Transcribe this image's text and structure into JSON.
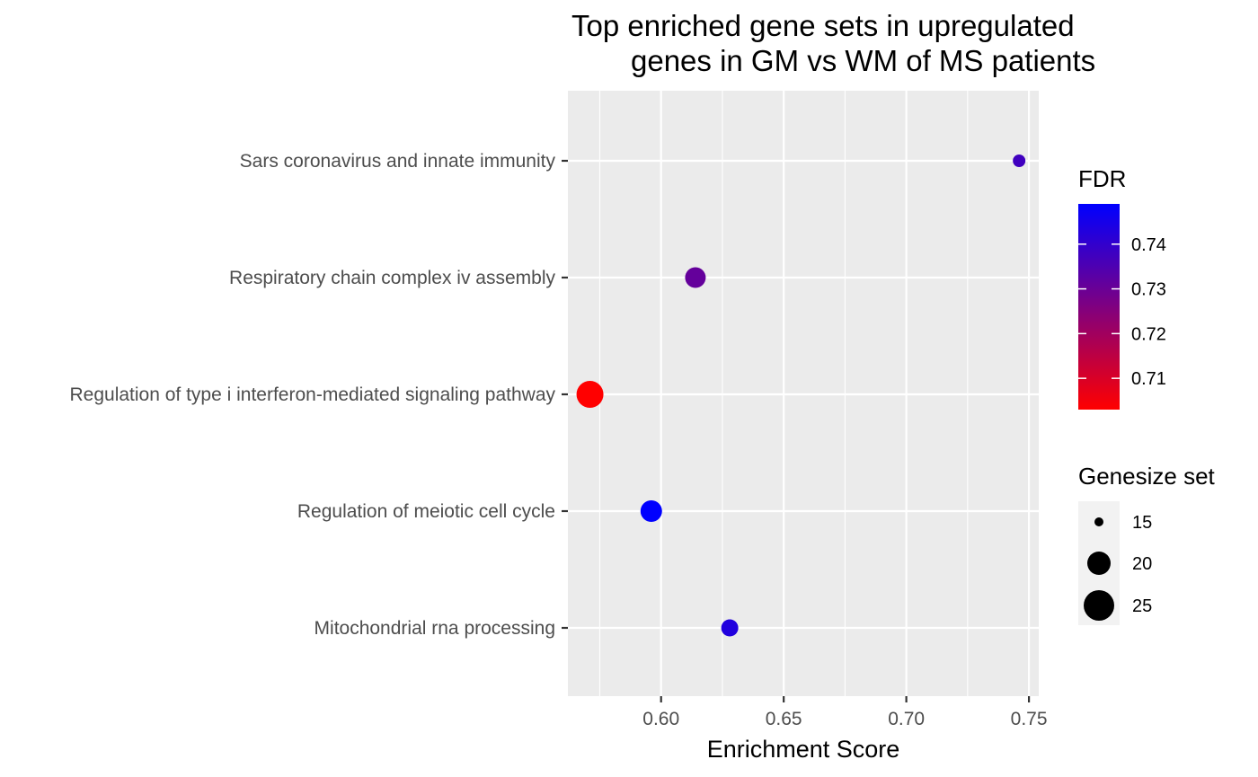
{
  "chart_data": {
    "type": "scatter",
    "title_lines": [
      "Top enriched gene sets in upregulated",
      "genes in GM vs WM of MS patients"
    ],
    "xlabel": "Enrichment Score",
    "ylabel": "",
    "xlim": [
      0.562,
      0.754
    ],
    "x_ticks": [
      "0.60",
      "0.65",
      "0.70",
      "0.75"
    ],
    "categories": [
      "Sars coronavirus and innate immunity",
      "Respiratory chain complex iv assembly",
      "Regulation of type i interferon-mediated signaling pathway",
      "Regulation of meiotic cell cycle",
      "Mitochondrial rna processing"
    ],
    "points": [
      {
        "category": "Sars coronavirus and innate immunity",
        "x": 0.746,
        "fdr": 0.7375,
        "size": 12
      },
      {
        "category": "Respiratory chain complex iv assembly",
        "x": 0.614,
        "fdr": 0.731,
        "size": 21
      },
      {
        "category": "Regulation of type i interferon-mediated signaling pathway",
        "x": 0.571,
        "fdr": 0.703,
        "size": 28
      },
      {
        "category": "Regulation of meiotic cell cycle",
        "x": 0.596,
        "fdr": 0.749,
        "size": 22
      },
      {
        "category": "Mitochondrial rna processing",
        "x": 0.628,
        "fdr": 0.743,
        "size": 17
      }
    ],
    "color_legend": {
      "title": "FDR",
      "ticks": [
        "0.71",
        "0.72",
        "0.73",
        "0.74"
      ],
      "range": [
        0.703,
        0.749
      ],
      "low_color": "#ff0000",
      "high_color": "#0000ff"
    },
    "size_legend": {
      "title": "Genesize set",
      "entries": [
        {
          "label": "15",
          "size": 15
        },
        {
          "label": "20",
          "size": 20
        },
        {
          "label": "25",
          "size": 25
        }
      ]
    },
    "panel_background": "#ebebeb",
    "grid": true
  }
}
